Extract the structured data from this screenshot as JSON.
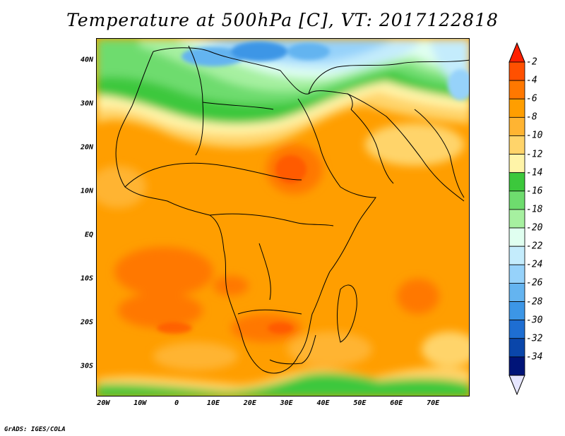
{
  "title": "Temperature at 500hPa [C], VT: 2017122818",
  "credit": "GrADS: IGES/COLA",
  "map": {
    "projection": "lat-lon",
    "lon_range": [
      -22,
      80
    ],
    "lat_range": [
      -37,
      45
    ],
    "variable": "temperature",
    "level": "500hPa",
    "units": "C",
    "lat_ticks": [
      {
        "lat": 40,
        "label": "40N"
      },
      {
        "lat": 30,
        "label": "30N"
      },
      {
        "lat": 20,
        "label": "20N"
      },
      {
        "lat": 10,
        "label": "10N"
      },
      {
        "lat": 0,
        "label": "EQ"
      },
      {
        "lat": -10,
        "label": "10S"
      },
      {
        "lat": -20,
        "label": "20S"
      },
      {
        "lat": -30,
        "label": "30S"
      }
    ],
    "lon_ticks": [
      {
        "lon": -20,
        "label": "20W"
      },
      {
        "lon": -10,
        "label": "10W"
      },
      {
        "lon": 0,
        "label": "0"
      },
      {
        "lon": 10,
        "label": "10E"
      },
      {
        "lon": 20,
        "label": "20E"
      },
      {
        "lon": 30,
        "label": "30E"
      },
      {
        "lon": 40,
        "label": "40E"
      },
      {
        "lon": 50,
        "label": "50E"
      },
      {
        "lon": 60,
        "label": "60E"
      },
      {
        "lon": 70,
        "label": "70E"
      }
    ]
  },
  "colorbar": {
    "label_values": [
      "-2",
      "-4",
      "-6",
      "-8",
      "-10",
      "-12",
      "-14",
      "-16",
      "-18",
      "-20",
      "-22",
      "-24",
      "-26",
      "-28",
      "-30",
      "-32",
      "-34"
    ],
    "colors": [
      "#ff5000",
      "#ff7800",
      "#ff9e00",
      "#ffb432",
      "#ffd46a",
      "#fff4a8",
      "#3cc83c",
      "#6edc6e",
      "#a6f0a0",
      "#e0fff0",
      "#c4ecfc",
      "#96d2fa",
      "#64b4f0",
      "#3c96e6",
      "#1e6ed2",
      "#0a46aa",
      "#001478"
    ],
    "top_arrow_color": "#ff2000",
    "bottom_arrow_color": "#e6e6ff"
  }
}
